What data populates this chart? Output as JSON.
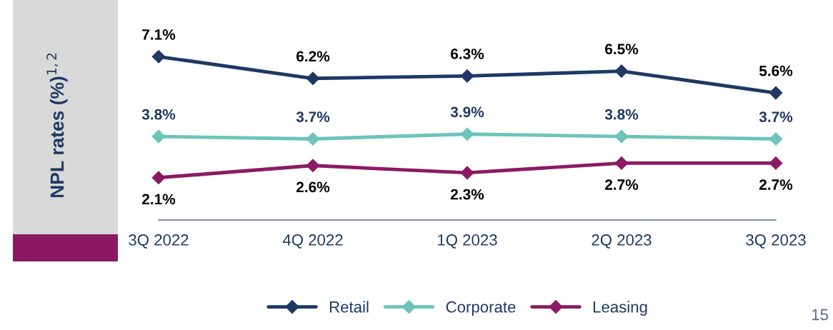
{
  "chart_data": {
    "type": "line",
    "ylabel": "NPL rates (%)$^{1,2}$",
    "categories": [
      "3Q 2022",
      "4Q 2022",
      "1Q 2023",
      "2Q 2023",
      "3Q 2023"
    ],
    "series": [
      {
        "name": "Retail",
        "color": "#1f3864",
        "values": [
          7.1,
          6.2,
          6.3,
          6.5,
          5.6
        ],
        "value_labels": [
          "7.1%",
          "6.2%",
          "6.3%",
          "6.5%",
          "5.6%"
        ]
      },
      {
        "name": "Corporate",
        "color": "#6cc4bc",
        "values": [
          3.8,
          3.7,
          3.9,
          3.8,
          3.7
        ],
        "value_labels": [
          "3.8%",
          "3.7%",
          "3.9%",
          "3.8%",
          "3.7%"
        ]
      },
      {
        "name": "Leasing",
        "color": "#8b1a63",
        "values": [
          2.1,
          2.6,
          2.3,
          2.7,
          2.7
        ],
        "value_labels": [
          "2.1%",
          "2.6%",
          "2.3%",
          "2.7%",
          "2.7%"
        ]
      }
    ],
    "marker": "diamond",
    "line_style": "solid",
    "legend": "bottom",
    "grid": false,
    "annotations": [
      "15"
    ]
  }
}
